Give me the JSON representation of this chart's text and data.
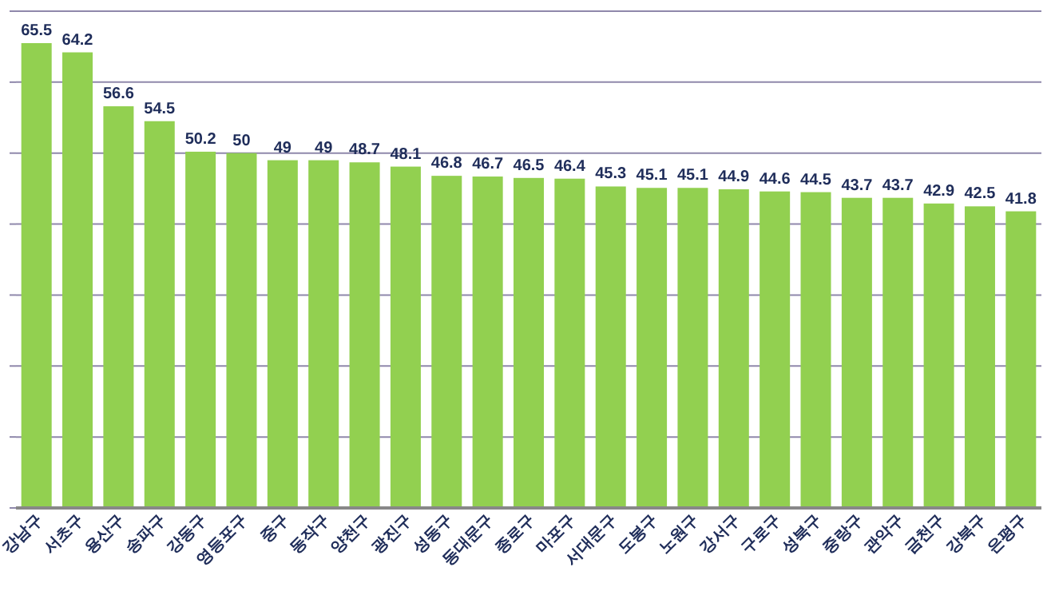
{
  "chart_data": {
    "type": "bar",
    "categories": [
      "강남구",
      "서초구",
      "용산구",
      "송파구",
      "강동구",
      "영등포구",
      "중구",
      "동작구",
      "양천구",
      "광진구",
      "성동구",
      "동대문구",
      "종로구",
      "마포구",
      "서대문구",
      "도봉구",
      "노원구",
      "강서구",
      "구로구",
      "성북구",
      "중랑구",
      "관악구",
      "금천구",
      "강북구",
      "은평구"
    ],
    "values": [
      65.5,
      64.2,
      56.6,
      54.5,
      50.2,
      50,
      49,
      49,
      48.7,
      48.1,
      46.8,
      46.7,
      46.5,
      46.4,
      45.3,
      45.1,
      45.1,
      44.9,
      44.6,
      44.5,
      43.7,
      43.7,
      42.9,
      42.5,
      41.8
    ],
    "color": "#92d050",
    "ylim": [
      0,
      70
    ],
    "yticks": [
      {
        "value": 0,
        "label": null
      },
      {
        "value": 10,
        "label": null
      },
      {
        "value": 20,
        "label": null
      },
      {
        "value": 30,
        "label": null
      },
      {
        "value": 40,
        "label": null
      },
      {
        "value": 50,
        "label": null
      },
      {
        "value": 60,
        "label": null
      },
      {
        "value": 70,
        "label": null
      }
    ],
    "grid": "y",
    "tick_labels": "x",
    "data_labels": true
  }
}
